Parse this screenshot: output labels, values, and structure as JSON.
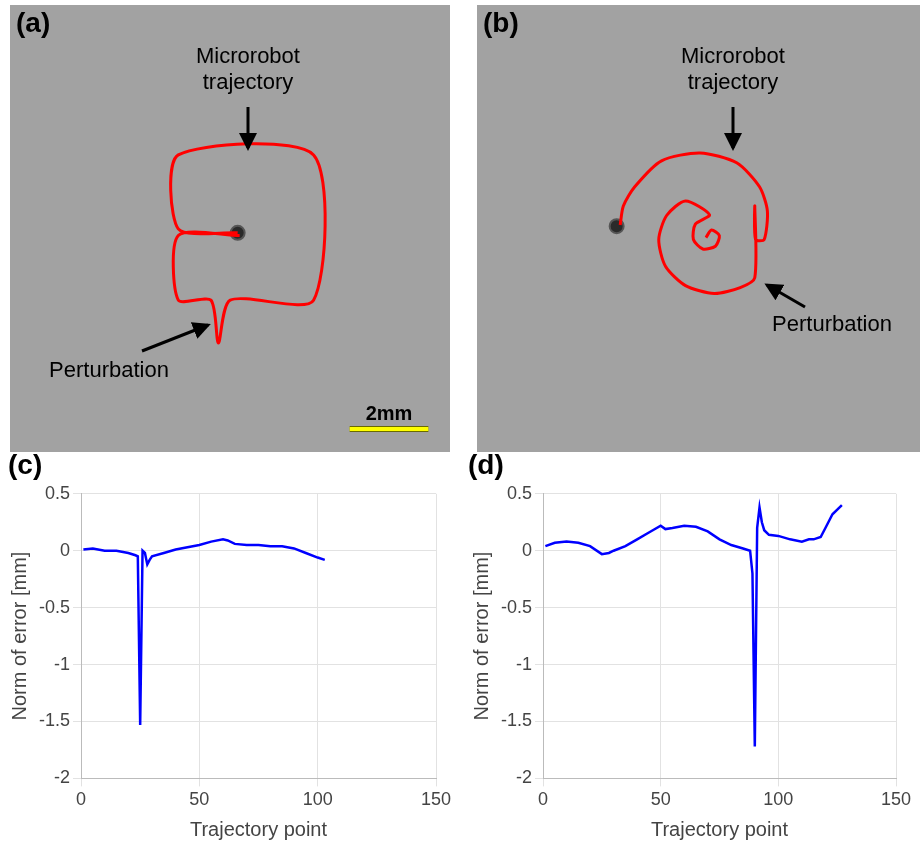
{
  "chart_data": [
    {
      "panel": "(a)",
      "type": "line",
      "color": "#ff0000",
      "tick_labels": false,
      "grid": false,
      "xlim": [
        0,
        10.73
      ],
      "ylim": [
        0,
        10.9
      ],
      "x": [
        5.56,
        4.05,
        4.05,
        7.49,
        7.49,
        5.37,
        5.07,
        4.88,
        4.05,
        4.05,
        5.61
      ],
      "values": [
        5.34,
        5.44,
        7.32,
        7.32,
        3.63,
        3.63,
        2.54,
        3.63,
        3.63,
        5.27,
        5.27
      ],
      "robot_position": [
        5.56,
        5.34
      ],
      "annotations": [
        "Microrobot trajectory",
        "Perturbation"
      ],
      "scale_bar": {
        "length": 2,
        "label": "2mm"
      }
    },
    {
      "panel": "(b)",
      "type": "line",
      "color": "#ff0000",
      "tick_labels": false,
      "grid": false,
      "xlim": [
        0,
        10.8
      ],
      "ylim": [
        0,
        10.9
      ],
      "x": [
        5.59,
        5.73,
        5.93,
        5.83,
        5.51,
        5.27,
        5.32,
        5.68,
        5.07,
        4.59,
        4.39,
        4.56,
        5.07,
        5.8,
        6.46,
        6.83,
        6.83,
        6.85,
        7.07,
        7.15,
        6.95,
        6.37,
        5.44,
        4.46,
        3.78,
        3.49,
        3.41
      ],
      "values": [
        5.22,
        5.41,
        5.27,
        5.0,
        4.93,
        5.17,
        5.56,
        5.8,
        6.15,
        5.78,
        5.17,
        4.49,
        4.0,
        3.8,
        3.95,
        4.2,
        6.02,
        5.17,
        5.17,
        5.9,
        6.51,
        7.12,
        7.37,
        7.17,
        6.51,
        6.02,
        5.54
      ],
      "robot_position": [
        3.32,
        5.51
      ],
      "annotations": [
        "Microrobot trajectory",
        "Perturbation"
      ]
    },
    {
      "panel": "(c)",
      "type": "line",
      "color": "#0000ff",
      "grid": true,
      "x_label": "Trajectory point",
      "y_label": "Norm of error [mm]",
      "xlim": [
        0,
        150
      ],
      "xticks": [
        0,
        50,
        100,
        150
      ],
      "ylim": [
        -2,
        0.5
      ],
      "yticks": [
        -2,
        -1.5,
        -1,
        -0.5,
        0,
        0.5
      ],
      "x": [
        1,
        5,
        10,
        15,
        20,
        23,
        24,
        25,
        26,
        27,
        28,
        29,
        30,
        35,
        40,
        45,
        50,
        55,
        60,
        62,
        65,
        70,
        75,
        80,
        85,
        90,
        95,
        100,
        103
      ],
      "values": [
        0.01,
        0.02,
        0.0,
        0.0,
        -0.02,
        -0.04,
        -0.05,
        -1.53,
        0.0,
        -0.02,
        -0.12,
        -0.08,
        -0.05,
        -0.02,
        0.01,
        0.03,
        0.05,
        0.08,
        0.1,
        0.09,
        0.06,
        0.05,
        0.05,
        0.04,
        0.04,
        0.02,
        -0.02,
        -0.06,
        -0.08
      ]
    },
    {
      "panel": "(d)",
      "type": "line",
      "color": "#0000ff",
      "grid": true,
      "x_label": "Trajectory point",
      "y_label": "Norm of error [mm]",
      "xlim": [
        0,
        150
      ],
      "xticks": [
        0,
        50,
        100,
        150
      ],
      "ylim": [
        -2,
        0.5
      ],
      "yticks": [
        -2,
        -1.5,
        -1,
        -0.5,
        0,
        0.5
      ],
      "x": [
        1,
        5,
        10,
        15,
        20,
        25,
        28,
        30,
        35,
        40,
        45,
        50,
        52,
        55,
        60,
        65,
        70,
        75,
        80,
        85,
        88,
        89,
        90,
        91,
        92,
        93,
        94,
        96,
        100,
        105,
        110,
        113,
        115,
        118,
        120,
        123,
        127
      ],
      "values": [
        0.04,
        0.07,
        0.08,
        0.07,
        0.04,
        -0.03,
        -0.02,
        0.0,
        0.04,
        0.1,
        0.16,
        0.22,
        0.19,
        0.2,
        0.22,
        0.21,
        0.17,
        0.1,
        0.05,
        0.02,
        0.0,
        -0.2,
        -1.72,
        0.2,
        0.38,
        0.25,
        0.18,
        0.14,
        0.13,
        0.1,
        0.08,
        0.1,
        0.1,
        0.12,
        0.2,
        0.32,
        0.4
      ]
    }
  ]
}
